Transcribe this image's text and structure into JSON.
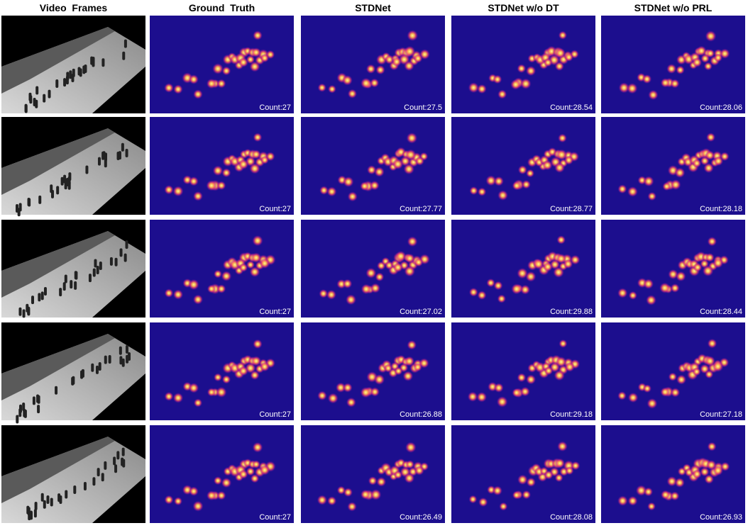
{
  "header": {
    "columns": [
      "Video  Frames",
      "Ground  Truth",
      "STDNet",
      "STDNet w/o DT",
      "STDNet w/o PRL"
    ]
  },
  "rows": [
    [
      "Count:27",
      "Count:27.5",
      "Count:28.54",
      "Count:28.06"
    ],
    [
      "Count:27",
      "Count:27.77",
      "Count:28.77",
      "Count:28.18"
    ],
    [
      "Count:27",
      "Count:27.02",
      "Count:29.88",
      "Count:28.44"
    ],
    [
      "Count:27",
      "Count:26.88",
      "Count:29.18",
      "Count:27.18"
    ],
    [
      "Count:27",
      "Count:26.49",
      "Count:28.08",
      "Count:26.93"
    ]
  ]
}
